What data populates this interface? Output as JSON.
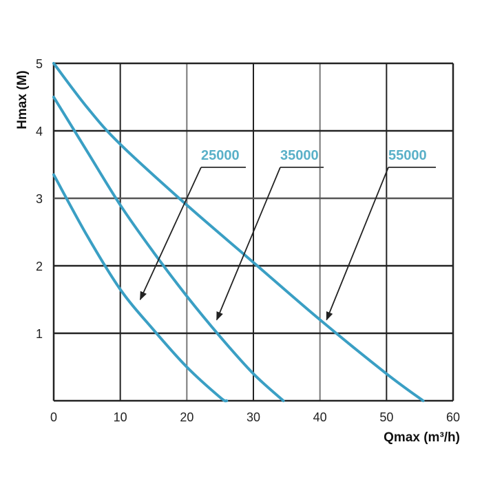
{
  "chart_data": {
    "type": "line",
    "title": "",
    "xlabel": "Qmax (m³/h)",
    "ylabel": "Hmax (M)",
    "xlim": [
      0,
      60
    ],
    "ylim": [
      0,
      5
    ],
    "x_ticks": [
      "0",
      "10",
      "20",
      "30",
      "40",
      "50",
      "60"
    ],
    "y_ticks": [
      "1",
      "2",
      "3",
      "4",
      "5"
    ],
    "grid": true,
    "line_color": "#3a9fc4",
    "label_color": "#5ab0c8",
    "series": [
      {
        "name": "25000",
        "x": [
          0,
          5,
          10,
          15,
          20,
          25,
          26
        ],
        "y": [
          3.35,
          2.45,
          1.65,
          1.05,
          0.5,
          0.05,
          0
        ],
        "label_point": [
          13,
          1.5
        ]
      },
      {
        "name": "35000",
        "x": [
          0,
          5,
          10,
          15,
          20,
          25,
          30,
          34.5
        ],
        "y": [
          4.5,
          3.7,
          2.9,
          2.2,
          1.55,
          0.95,
          0.4,
          0
        ],
        "label_point": [
          24.5,
          1.2
        ]
      },
      {
        "name": "55000",
        "x": [
          0,
          5,
          10,
          20,
          30,
          40,
          50,
          55.5
        ],
        "y": [
          5.0,
          4.35,
          3.8,
          2.9,
          2.05,
          1.2,
          0.4,
          0
        ],
        "label_point": [
          41,
          1.2
        ]
      }
    ]
  }
}
